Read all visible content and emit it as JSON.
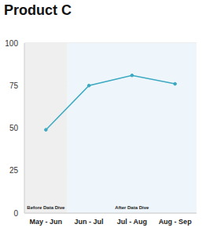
{
  "chart_data": {
    "type": "line",
    "title": "Product C",
    "categories": [
      "May - Jun",
      "Jun - Jul",
      "Jul - Aug",
      "Aug - Sep"
    ],
    "values": [
      49,
      75,
      81,
      76
    ],
    "color": "#3aa9c1",
    "marker": "circle",
    "ylim": [
      0,
      100
    ],
    "yticks": [
      0,
      25,
      50,
      75,
      100
    ],
    "grid": true,
    "regions": [
      {
        "label": "Before Data Dive",
        "from": "May - Jun",
        "to": "May - Jun",
        "color": "#efefef"
      },
      {
        "label": "After Data Dive",
        "from": "Jun - Jul",
        "to": "Aug - Sep",
        "color": "#eef6fb"
      }
    ]
  }
}
